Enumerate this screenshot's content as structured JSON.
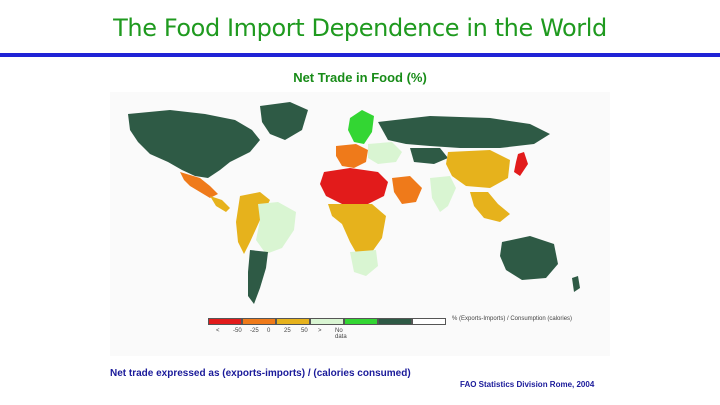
{
  "slide": {
    "title": "The Food Import Dependence in the World",
    "map_heading": "Net Trade in Food (%)",
    "footnote_left": "Net trade expressed as (exports-imports) / (calories consumed)",
    "footnote_right": "FAO Statistics Division Rome, 2004"
  },
  "colors": {
    "accent_title": "#1f9a1f",
    "rule": "#1f23d6",
    "footnote": "#1a1a9a"
  },
  "legend": {
    "caption": "% (Exports-Imports) / Consumption (calories)",
    "classes": [
      {
        "label": "< -50",
        "color": "#e21b1b"
      },
      {
        "label": "-25",
        "color": "#ef7a1a"
      },
      {
        "label": "0",
        "color": "#e6b21c"
      },
      {
        "label": "25",
        "color": "#d9f5d2"
      },
      {
        "label": "50",
        "color": "#33d633"
      },
      {
        "label": ">",
        "color": "#2e5a45"
      },
      {
        "label": "No data",
        "color": "#ffffff"
      }
    ],
    "ticks": [
      "<",
      "-50",
      "-25",
      "0",
      "25",
      "50",
      ">",
      "No data"
    ]
  },
  "regions": [
    {
      "name": "North America",
      "class": ">"
    },
    {
      "name": "Greenland",
      "class": ">"
    },
    {
      "name": "Mexico",
      "class": "-25"
    },
    {
      "name": "Central America",
      "class": "0"
    },
    {
      "name": "Brazil",
      "class": "25"
    },
    {
      "name": "Argentina",
      "class": ">"
    },
    {
      "name": "Western South America",
      "class": "0"
    },
    {
      "name": "Scandinavia",
      "class": "50"
    },
    {
      "name": "Western Europe",
      "class": "-25"
    },
    {
      "name": "Eastern Europe",
      "class": "25"
    },
    {
      "name": "North Africa",
      "class": "< -50"
    },
    {
      "name": "Arabian Peninsula",
      "class": "-25"
    },
    {
      "name": "Sub-Saharan Africa",
      "class": "0"
    },
    {
      "name": "Southern Africa",
      "class": "25"
    },
    {
      "name": "Russia",
      "class": ">"
    },
    {
      "name": "Kazakhstan",
      "class": ">"
    },
    {
      "name": "China",
      "class": "0"
    },
    {
      "name": "India",
      "class": "25"
    },
    {
      "name": "Southeast Asia",
      "class": "0"
    },
    {
      "name": "Japan",
      "class": "< -50"
    },
    {
      "name": "Australia",
      "class": ">"
    }
  ]
}
